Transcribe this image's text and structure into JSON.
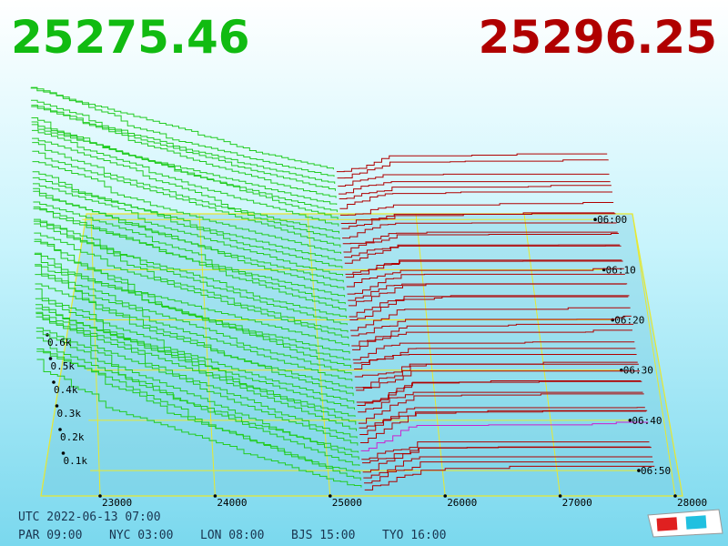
{
  "bid_price": "25275.46",
  "ask_price": "25296.25",
  "price_ticks": [
    23000,
    24000,
    25000,
    26000,
    27000,
    28000
  ],
  "volume_ticks": [
    {
      "value": 600,
      "label": "0.6k"
    },
    {
      "value": 500,
      "label": "0.5k"
    },
    {
      "value": 400,
      "label": "0.4k"
    },
    {
      "value": 300,
      "label": "0.3k"
    },
    {
      "value": 200,
      "label": "0.2k"
    },
    {
      "value": 100,
      "label": "0.1k"
    }
  ],
  "time_ticks": [
    "06:00",
    "06:10",
    "06:20",
    "06:30",
    "06:40",
    "06:50"
  ],
  "utc_time": "UTC 2022-06-13 07:00",
  "city_times": [
    "PAR 09:00",
    "NYC 03:00",
    "LON 08:00",
    "BJS 15:00",
    "TYO 16:00"
  ]
}
